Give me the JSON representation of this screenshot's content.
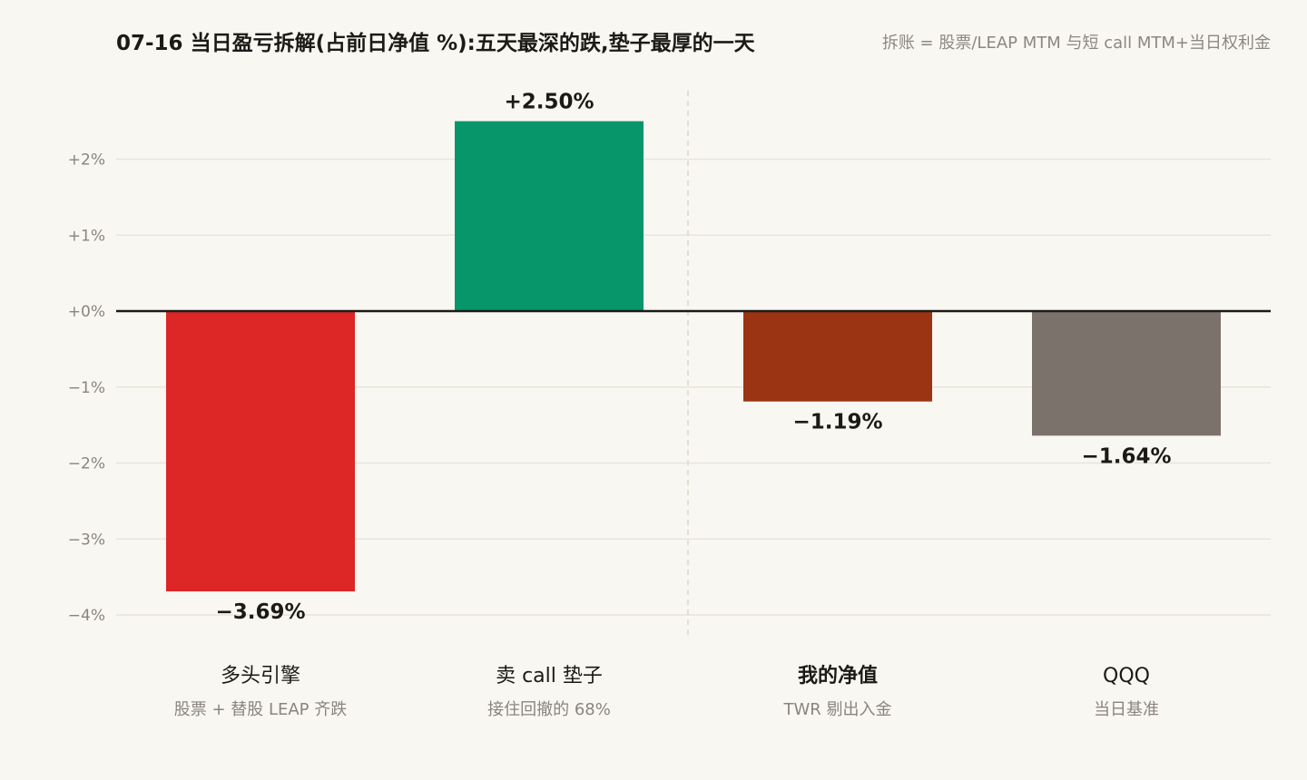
{
  "chart_data": {
    "type": "bar",
    "title": "07-16 当日盈亏拆解(占前日净值 %):五天最深的跌,垫子最厚的一天",
    "subtitle": "拆账 = 股票/LEAP MTM 与短 call MTM+当日权利金",
    "categories": [
      "多头引擎",
      "卖 call 垫子",
      "我的净值",
      "QQQ"
    ],
    "category_subtitles": [
      "股票 + 替股 LEAP 齐跌",
      "接住回撤的 68%",
      "TWR 剔出入金",
      "当日基准"
    ],
    "emphasized_category": "我的净值",
    "values": [
      -3.69,
      2.5,
      -1.19,
      -1.64
    ],
    "value_labels": [
      "−3.69%",
      "+2.50%",
      "−1.19%",
      "−1.64%"
    ],
    "colors": [
      "#dd2626",
      "#079669",
      "#9b3413",
      "#7b726b"
    ],
    "ylim": [
      -4.2,
      2.5
    ],
    "yticks": [
      2,
      1,
      0,
      -1,
      -2,
      -3,
      -4
    ],
    "ytick_labels": [
      "+2%",
      "+1%",
      "+0%",
      "−1%",
      "−2%",
      "−3%",
      "−4%"
    ],
    "grid": true,
    "separator_after_category": 2,
    "xlabel": "",
    "ylabel": ""
  }
}
